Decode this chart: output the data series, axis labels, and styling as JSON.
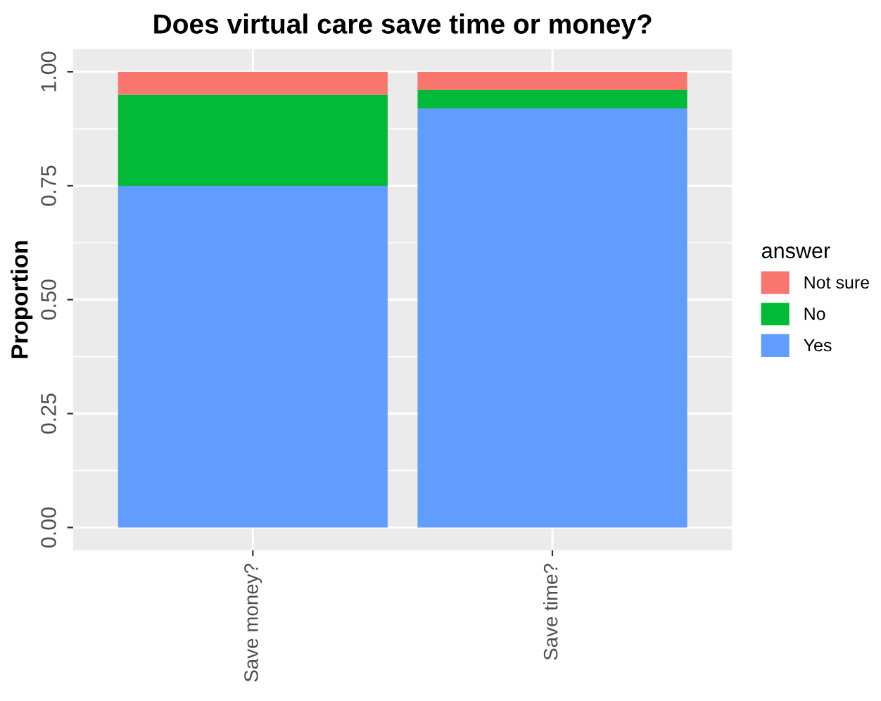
{
  "chart_data": {
    "type": "bar",
    "title": "Does virtual care save time or money?",
    "ylabel": "Proportion",
    "legend_title": "answer",
    "categories": [
      "Save money?",
      "Save time?"
    ],
    "series": [
      {
        "name": "Yes",
        "color": "#619cff",
        "values": [
          0.75,
          0.92
        ]
      },
      {
        "name": "No",
        "color": "#00ba38",
        "values": [
          0.2,
          0.04
        ]
      },
      {
        "name": "Not sure",
        "color": "#f8766d",
        "values": [
          0.05,
          0.04
        ]
      }
    ],
    "stacked": true,
    "ylim": [
      -0.05,
      1.05
    ],
    "yticks": [
      {
        "value": 0,
        "label": "0.00"
      },
      {
        "value": 0.25,
        "label": "0.25"
      },
      {
        "value": 0.5,
        "label": "0.50"
      },
      {
        "value": 0.75,
        "label": "0.75"
      },
      {
        "value": 1,
        "label": "1.00"
      }
    ],
    "grid": true,
    "legend": "right"
  }
}
